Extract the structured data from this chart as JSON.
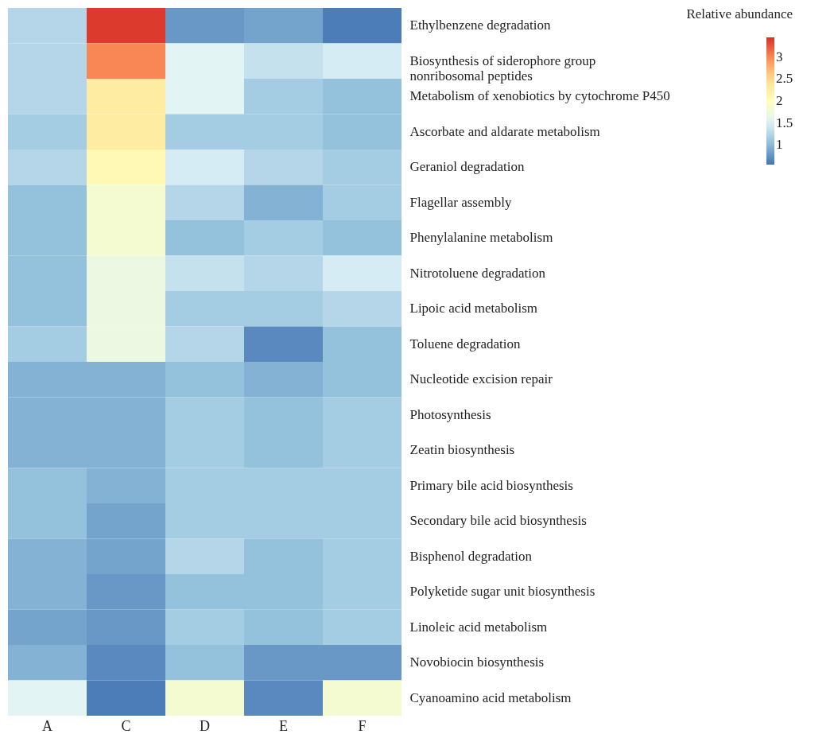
{
  "chart_data": {
    "type": "heatmap",
    "clabel": "Relative abundance",
    "categories": [
      "A",
      "C",
      "D",
      "E",
      "F"
    ],
    "y_categories": [
      "Ethylbenzene degradation",
      "Biosynthesis of siderophore group nonribosomal peptides",
      "Metabolism of xenobiotics by cytochrome P450",
      "Ascorbate and aldarate metabolism",
      "Geraniol degradation",
      "Flagellar assembly",
      "Phenylalanine metabolism",
      "Nitrotoluene degradation",
      "Lipoic acid metabolism",
      "Toluene degradation",
      "Nucleotide excision repair",
      "Photosynthesis",
      "Zeatin biosynthesis",
      "Primary bile acid biosynthesis",
      "Secondary bile acid biosynthesis",
      "Bisphenol degradation",
      "Polyketide sugar unit biosynthesis",
      "Linoleic acid metabolism",
      "Novobiocin biosynthesis",
      "Cyanoamino acid metabolism"
    ],
    "cells": [
      [
        1.25,
        3.4,
        0.78,
        0.85,
        0.6
      ],
      [
        1.25,
        3.0,
        1.55,
        1.35,
        1.45
      ],
      [
        1.25,
        2.3,
        1.55,
        1.15,
        1.05
      ],
      [
        1.15,
        2.3,
        1.15,
        1.15,
        1.05
      ],
      [
        1.25,
        2.1,
        1.45,
        1.25,
        1.15
      ],
      [
        1.05,
        1.85,
        1.25,
        0.95,
        1.15
      ],
      [
        1.05,
        1.85,
        1.05,
        1.15,
        1.05
      ],
      [
        1.05,
        1.7,
        1.35,
        1.25,
        1.45
      ],
      [
        1.05,
        1.7,
        1.15,
        1.15,
        1.25
      ],
      [
        1.15,
        1.7,
        1.25,
        0.68,
        1.05
      ],
      [
        0.95,
        0.95,
        1.05,
        0.95,
        1.05
      ],
      [
        0.95,
        0.95,
        1.15,
        1.05,
        1.15
      ],
      [
        0.95,
        0.95,
        1.15,
        1.05,
        1.15
      ],
      [
        1.05,
        0.95,
        1.15,
        1.15,
        1.15
      ],
      [
        1.05,
        0.85,
        1.15,
        1.15,
        1.15
      ],
      [
        0.95,
        0.85,
        1.25,
        1.05,
        1.15
      ],
      [
        0.95,
        0.78,
        1.05,
        1.05,
        1.15
      ],
      [
        0.85,
        0.78,
        1.15,
        1.05,
        1.15
      ],
      [
        0.95,
        0.68,
        1.05,
        0.78,
        0.78
      ],
      [
        1.55,
        0.6,
        1.85,
        0.68,
        1.85
      ]
    ],
    "clim": [
      0.55,
      3.45
    ],
    "cticks": [
      1,
      1.5,
      2,
      2.5,
      3
    ]
  }
}
